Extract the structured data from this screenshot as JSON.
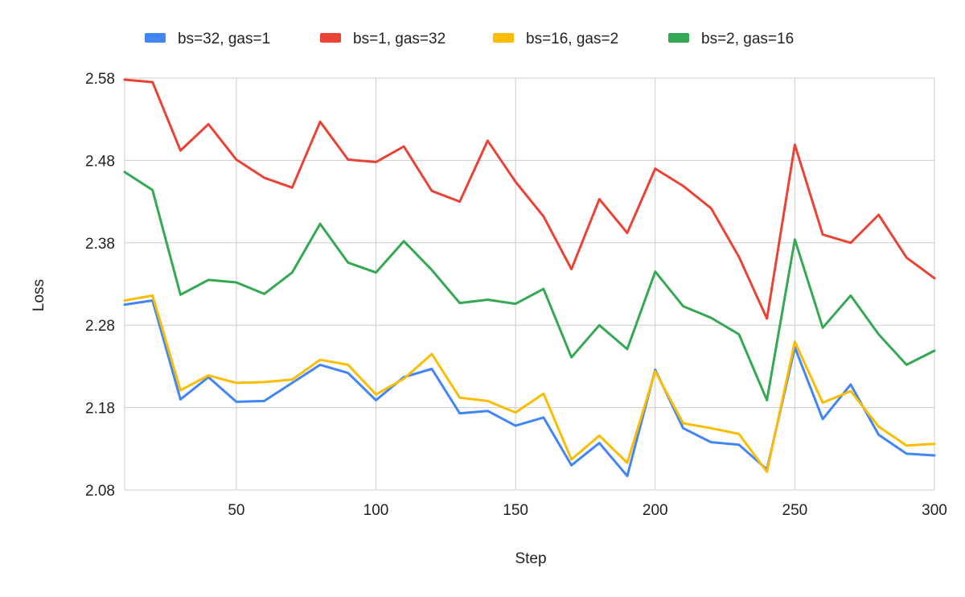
{
  "chart_data": {
    "type": "line",
    "title": "",
    "xlabel": "Step",
    "ylabel": "Loss",
    "xlim": [
      10,
      300
    ],
    "ylim": [
      2.08,
      2.58
    ],
    "x_ticks": [
      50,
      100,
      150,
      200,
      250,
      300
    ],
    "y_ticks": [
      2.08,
      2.18,
      2.28,
      2.38,
      2.48,
      2.58
    ],
    "y_tick_labels": [
      "2.08",
      "2.18",
      "2.28",
      "2.38",
      "2.48",
      "2.58"
    ],
    "grid": true,
    "legend": "top",
    "x": [
      10,
      20,
      30,
      40,
      50,
      60,
      70,
      80,
      90,
      100,
      110,
      120,
      130,
      140,
      150,
      160,
      170,
      180,
      190,
      200,
      210,
      220,
      230,
      240,
      250,
      260,
      270,
      280,
      290,
      300
    ],
    "series": [
      {
        "name": "bs=32, gas=1",
        "color": "#4285F4",
        "values": [
          2.305,
          2.31,
          2.19,
          2.217,
          2.187,
          2.188,
          2.21,
          2.232,
          2.222,
          2.189,
          2.217,
          2.227,
          2.173,
          2.176,
          2.158,
          2.168,
          2.11,
          2.137,
          2.097,
          2.226,
          2.155,
          2.138,
          2.135,
          2.105,
          2.253,
          2.166,
          2.208,
          2.147,
          2.124,
          2.122
        ]
      },
      {
        "name": "bs=1, gas=32",
        "color": "#EA4335",
        "values": [
          2.578,
          2.575,
          2.492,
          2.524,
          2.481,
          2.459,
          2.447,
          2.527,
          2.481,
          2.478,
          2.497,
          2.443,
          2.43,
          2.504,
          2.454,
          2.412,
          2.348,
          2.433,
          2.392,
          2.47,
          2.449,
          2.422,
          2.363,
          2.288,
          2.499,
          2.39,
          2.38,
          2.414,
          2.362,
          2.337
        ]
      },
      {
        "name": "bs=16, gas=2",
        "color": "#FBBC04",
        "values": [
          2.31,
          2.316,
          2.201,
          2.219,
          2.21,
          2.211,
          2.214,
          2.238,
          2.232,
          2.196,
          2.215,
          2.245,
          2.192,
          2.188,
          2.174,
          2.197,
          2.117,
          2.146,
          2.113,
          2.224,
          2.161,
          2.155,
          2.148,
          2.102,
          2.26,
          2.186,
          2.2,
          2.157,
          2.134,
          2.136
        ]
      },
      {
        "name": "bs=2, gas=16",
        "color": "#34A853",
        "values": [
          2.466,
          2.444,
          2.317,
          2.335,
          2.332,
          2.318,
          2.344,
          2.403,
          2.356,
          2.344,
          2.382,
          2.347,
          2.307,
          2.311,
          2.306,
          2.324,
          2.241,
          2.28,
          2.251,
          2.345,
          2.303,
          2.289,
          2.269,
          2.189,
          2.384,
          2.277,
          2.316,
          2.269,
          2.232,
          2.249
        ]
      }
    ]
  }
}
